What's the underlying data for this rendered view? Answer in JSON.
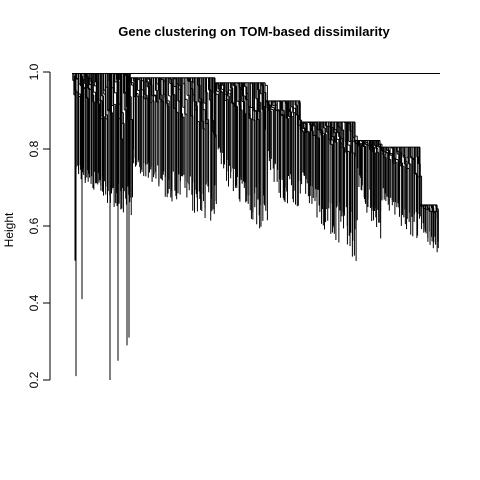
{
  "chart_data": {
    "type": "dendrogram",
    "title": "Gene clustering on TOM-based dissimilarity",
    "ylabel": "Height",
    "xlabel": "",
    "ylim": [
      0.2,
      1.0
    ],
    "yticks": [
      0.2,
      0.4,
      0.6,
      0.8,
      1.0
    ],
    "ytick_labels": [
      "0.2",
      "0.4",
      "0.6",
      "0.8",
      "1.0"
    ],
    "line_color": "#000000",
    "merges": [
      {
        "height": 0.996,
        "leaf_height": 0.21
      },
      {
        "height": 0.995,
        "leaf_height": 0.51
      },
      {
        "height": 0.993,
        "leaf_height": 0.41
      },
      {
        "height": 0.992,
        "leaf_height": 0.2
      },
      {
        "height": 0.99,
        "leaf_height": 0.25
      },
      {
        "height": 0.988,
        "leaf_height": 0.29
      },
      {
        "height": 0.985,
        "leaf_height": 0.31
      },
      {
        "height": 0.97,
        "leaf_height": 0.53
      },
      {
        "height": 0.96,
        "leaf_height": 0.58
      },
      {
        "height": 0.93,
        "leaf_height": 0.55
      },
      {
        "height": 0.87,
        "leaf_height": 0.49
      },
      {
        "height": 0.82,
        "leaf_height": 0.53
      },
      {
        "height": 0.805,
        "leaf_height": 0.5
      },
      {
        "height": 0.655,
        "leaf_height": 0.54
      }
    ]
  }
}
